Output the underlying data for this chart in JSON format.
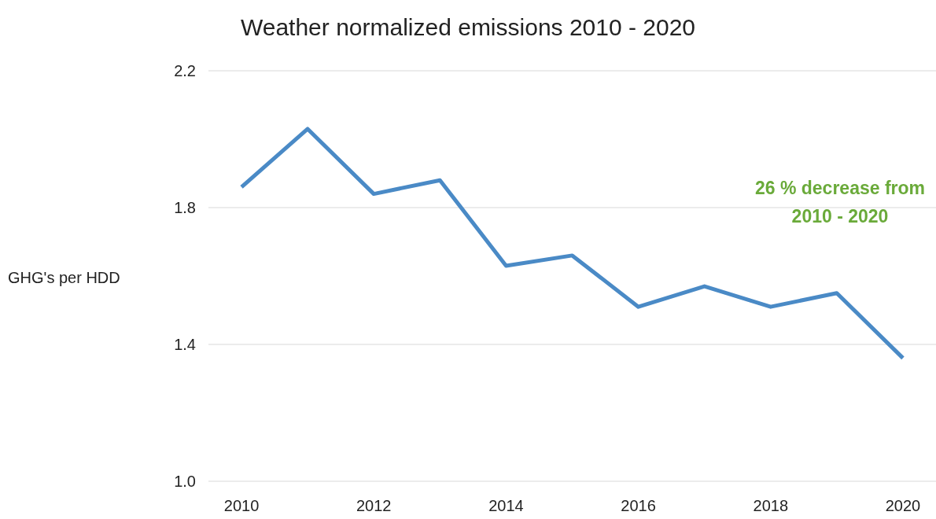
{
  "chart_data": {
    "type": "line",
    "title": "Weather normalized emissions 2010 - 2020",
    "ylabel": "GHG's per HDD",
    "categories": [
      "2010",
      null,
      "2012",
      null,
      "2014",
      null,
      "2016",
      null,
      "2018",
      null,
      "2020"
    ],
    "series": [
      {
        "color": "#4a8ac6",
        "values": [
          1.86,
          2.03,
          1.84,
          1.88,
          1.63,
          1.66,
          1.51,
          1.57,
          1.51,
          1.55,
          1.36
        ]
      }
    ],
    "ylim": [
      1.0,
      2.2
    ],
    "yticks": [
      {
        "value": 1.0,
        "label": "1.0"
      },
      {
        "value": 1.4,
        "label": "1.4"
      },
      {
        "value": 1.8,
        "label": "1.8"
      },
      {
        "value": 2.2,
        "label": "2.2"
      }
    ],
    "grid": "y",
    "marker": "none",
    "line_style": "solid",
    "annotations": [
      "26 % decrease from\n2010 - 2020"
    ]
  }
}
